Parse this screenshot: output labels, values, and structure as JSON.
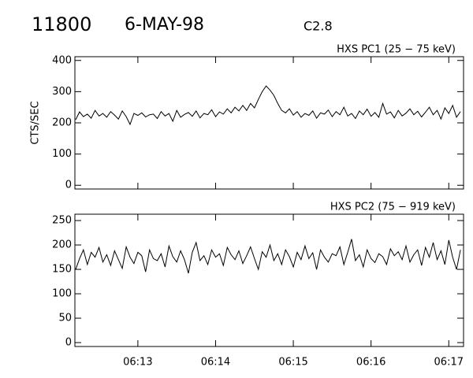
{
  "header": {
    "id": "11800",
    "date": "6-MAY-98",
    "class": "C2.8"
  },
  "chart_data": [
    {
      "type": "line",
      "title": "HXS PC1 (25 − 75 keV)",
      "ylabel": "CTS/SEC",
      "x": [
        372.2,
        372.25,
        372.3,
        372.35,
        372.4,
        372.45,
        372.5,
        372.55,
        372.6,
        372.65,
        372.7,
        372.75,
        372.8,
        372.85,
        372.9,
        372.95,
        373.0,
        373.05,
        373.1,
        373.15,
        373.2,
        373.25,
        373.3,
        373.35,
        373.4,
        373.45,
        373.5,
        373.55,
        373.6,
        373.65,
        373.7,
        373.75,
        373.8,
        373.85,
        373.9,
        373.95,
        374.0,
        374.05,
        374.1,
        374.15,
        374.2,
        374.25,
        374.3,
        374.35,
        374.4,
        374.45,
        374.5,
        374.55,
        374.6,
        374.65,
        374.7,
        374.75,
        374.8,
        374.85,
        374.9,
        374.95,
        375.0,
        375.05,
        375.1,
        375.15,
        375.2,
        375.25,
        375.3,
        375.35,
        375.4,
        375.45,
        375.5,
        375.55,
        375.6,
        375.65,
        375.7,
        375.75,
        375.8,
        375.85,
        375.9,
        375.95,
        376.0,
        376.05,
        376.1,
        376.15,
        376.2,
        376.25,
        376.3,
        376.35,
        376.4,
        376.45,
        376.5,
        376.55,
        376.6,
        376.65,
        376.7,
        376.75,
        376.8,
        376.85,
        376.9,
        376.95,
        377.0,
        377.05,
        377.1,
        377.15
      ],
      "series": [
        {
          "color": "#000000",
          "values": [
            210,
            235,
            220,
            228,
            215,
            240,
            222,
            230,
            218,
            236,
            225,
            212,
            238,
            220,
            195,
            230,
            224,
            232,
            219,
            226,
            228,
            214,
            236,
            222,
            230,
            205,
            240,
            218,
            227,
            233,
            221,
            238,
            216,
            230,
            226,
            242,
            220,
            235,
            228,
            245,
            232,
            250,
            238,
            256,
            240,
            262,
            248,
            275,
            300,
            318,
            305,
            288,
            262,
            240,
            232,
            245,
            225,
            236,
            218,
            230,
            224,
            238,
            215,
            232,
            228,
            241,
            220,
            236,
            226,
            250,
            222,
            230,
            214,
            238,
            226,
            244,
            221,
            233,
            218,
            262,
            228,
            235,
            216,
            240,
            222,
            231,
            245,
            226,
            237,
            219,
            234,
            250,
            226,
            240,
            212,
            248,
            230,
            256,
            218,
            236
          ]
        }
      ],
      "xlim": [
        372.19,
        377.19
      ],
      "xticks": [
        373,
        374,
        375,
        376,
        377
      ],
      "ylim": [
        -12,
        412
      ],
      "yticks": [
        0,
        100,
        200,
        300,
        400
      ]
    },
    {
      "type": "line",
      "title": "HXS PC2 (75 − 919 keV)",
      "x": [
        372.2,
        372.25,
        372.3,
        372.35,
        372.4,
        372.45,
        372.5,
        372.55,
        372.6,
        372.65,
        372.7,
        372.75,
        372.8,
        372.85,
        372.9,
        372.95,
        373.0,
        373.05,
        373.1,
        373.15,
        373.2,
        373.25,
        373.3,
        373.35,
        373.4,
        373.45,
        373.5,
        373.55,
        373.6,
        373.65,
        373.7,
        373.75,
        373.8,
        373.85,
        373.9,
        373.95,
        374.0,
        374.05,
        374.1,
        374.15,
        374.2,
        374.25,
        374.3,
        374.35,
        374.4,
        374.45,
        374.5,
        374.55,
        374.6,
        374.65,
        374.7,
        374.75,
        374.8,
        374.85,
        374.9,
        374.95,
        375.0,
        375.05,
        375.1,
        375.15,
        375.2,
        375.25,
        375.3,
        375.35,
        375.4,
        375.45,
        375.5,
        375.55,
        375.6,
        375.65,
        375.7,
        375.75,
        375.8,
        375.85,
        375.9,
        375.95,
        376.0,
        376.05,
        376.1,
        376.15,
        376.2,
        376.25,
        376.3,
        376.35,
        376.4,
        376.45,
        376.5,
        376.55,
        376.6,
        376.65,
        376.7,
        376.75,
        376.8,
        376.85,
        376.9,
        376.95,
        377.0,
        377.05,
        377.1,
        377.15
      ],
      "series": [
        {
          "color": "#000000",
          "values": [
            150,
            172,
            190,
            160,
            185,
            175,
            195,
            165,
            180,
            158,
            188,
            170,
            152,
            196,
            175,
            162,
            185,
            178,
            145,
            190,
            172,
            168,
            182,
            155,
            198,
            176,
            165,
            188,
            170,
            142,
            185,
            205,
            168,
            178,
            160,
            190,
            175,
            182,
            158,
            195,
            180,
            170,
            188,
            162,
            178,
            196,
            172,
            150,
            186,
            175,
            200,
            168,
            182,
            160,
            190,
            176,
            155,
            185,
            170,
            198,
            172,
            184,
            150,
            190,
            175,
            165,
            182,
            178,
            196,
            160,
            185,
            212,
            168,
            180,
            155,
            190,
            172,
            164,
            182,
            176,
            160,
            192,
            178,
            186,
            170,
            198,
            165,
            180,
            190,
            158,
            195,
            175,
            205,
            170,
            188,
            160,
            210,
            175,
            150,
            190
          ]
        }
      ],
      "xlim": [
        372.19,
        377.19
      ],
      "xticks": [
        {
          "value": 373,
          "label": "06:13"
        },
        {
          "value": 374,
          "label": "06:14"
        },
        {
          "value": 375,
          "label": "06:15"
        },
        {
          "value": 376,
          "label": "06:16"
        },
        {
          "value": 377,
          "label": "06:17"
        }
      ],
      "ylim": [
        -8,
        263
      ],
      "yticks": [
        0,
        50,
        100,
        150,
        200,
        250
      ]
    }
  ]
}
